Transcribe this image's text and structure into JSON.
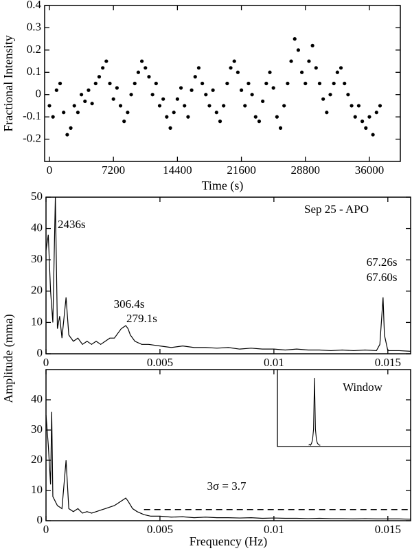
{
  "chart_data": [
    {
      "type": "scatter",
      "xlabel": "Time (s)",
      "ylabel": "Fractional Intensity",
      "color": "#000000",
      "x": [
        0,
        400,
        800,
        1200,
        1600,
        2000,
        2400,
        2800,
        3200,
        3600,
        4000,
        4400,
        4800,
        5200,
        5600,
        6000,
        6400,
        6800,
        7200,
        7600,
        8000,
        8400,
        8800,
        9200,
        9600,
        10000,
        10400,
        10800,
        11200,
        11600,
        12000,
        12400,
        12800,
        13200,
        13600,
        14000,
        14400,
        14800,
        15200,
        15600,
        16000,
        16400,
        16800,
        17200,
        17600,
        18000,
        18400,
        18800,
        19200,
        19600,
        20000,
        20400,
        20800,
        21200,
        21600,
        22000,
        22400,
        22800,
        23200,
        23600,
        24000,
        24400,
        24800,
        25200,
        25600,
        26000,
        26400,
        26800,
        27200,
        27600,
        28000,
        28400,
        28800,
        29200,
        29600,
        30000,
        30400,
        30800,
        31200,
        31600,
        32000,
        32400,
        32800,
        33200,
        33600,
        34000,
        34400,
        34800,
        35200,
        35600,
        36000,
        36400,
        36800,
        37200
      ],
      "values": [
        -0.05,
        -0.1,
        0.02,
        0.05,
        -0.08,
        -0.18,
        -0.15,
        -0.05,
        -0.08,
        0.0,
        -0.03,
        0.02,
        -0.04,
        0.05,
        0.08,
        0.12,
        0.15,
        0.05,
        -0.02,
        0.03,
        -0.05,
        -0.12,
        -0.08,
        0.0,
        0.05,
        0.1,
        0.15,
        0.12,
        0.08,
        0.0,
        0.05,
        -0.05,
        -0.02,
        -0.1,
        -0.15,
        -0.08,
        -0.02,
        0.03,
        -0.05,
        -0.1,
        0.02,
        0.08,
        0.12,
        0.05,
        0.0,
        -0.05,
        0.02,
        -0.08,
        -0.12,
        -0.05,
        0.05,
        0.12,
        0.15,
        0.1,
        0.02,
        -0.05,
        0.05,
        0.0,
        -0.1,
        -0.12,
        -0.03,
        0.05,
        0.1,
        0.03,
        -0.1,
        -0.15,
        -0.05,
        0.05,
        0.15,
        0.25,
        0.2,
        0.1,
        0.05,
        0.15,
        0.22,
        0.12,
        0.05,
        -0.02,
        -0.08,
        0.0,
        0.05,
        0.1,
        0.12,
        0.05,
        0.0,
        -0.05,
        -0.1,
        -0.05,
        -0.12,
        -0.15,
        -0.1,
        -0.18,
        -0.08,
        -0.05
      ],
      "xlim": [
        -540,
        39480
      ],
      "xticks": [
        0,
        7200,
        14400,
        21600,
        28800,
        36000
      ],
      "ylim": [
        -0.3,
        0.4
      ],
      "yticks": [
        -0.2,
        -0.1,
        0,
        0.1,
        0.2,
        0.3,
        0.4
      ]
    },
    {
      "type": "line",
      "ylabel": "Amplitude (mma)",
      "color": "#000000",
      "annotations": [
        "Sep 25 - APO",
        "2436s",
        "306.4s",
        "279.1s",
        "67.26s",
        "67.60s"
      ],
      "x": [
        0,
        0.0001,
        0.0002,
        0.0003,
        0.00041,
        0.0005,
        0.0006,
        0.0007,
        0.00088,
        0.001,
        0.0012,
        0.0014,
        0.0016,
        0.0018,
        0.002,
        0.0022,
        0.0024,
        0.0026,
        0.0028,
        0.003,
        0.0032,
        0.0033,
        0.0035,
        0.0036,
        0.0037,
        0.0039,
        0.0042,
        0.0045,
        0.005,
        0.0055,
        0.006,
        0.0065,
        0.007,
        0.0075,
        0.008,
        0.0085,
        0.009,
        0.0095,
        0.01,
        0.0105,
        0.011,
        0.0115,
        0.012,
        0.0125,
        0.013,
        0.0135,
        0.014,
        0.0145,
        0.01465,
        0.01479,
        0.01485,
        0.015,
        0.0155,
        0.016
      ],
      "values": [
        33,
        38,
        20,
        10,
        50,
        8,
        12,
        5,
        18,
        6,
        4,
        5,
        3,
        4,
        3,
        4,
        3,
        4,
        5,
        5,
        7,
        8,
        9,
        8,
        6,
        4,
        3,
        3,
        2.5,
        2,
        2.5,
        2,
        2,
        1.8,
        2,
        1.5,
        1.8,
        1.5,
        1.5,
        1.2,
        1.5,
        1.2,
        1.2,
        1,
        1.2,
        1,
        1.2,
        1,
        3,
        18,
        6,
        1,
        1,
        0.8
      ],
      "xlim": [
        0,
        0.016
      ],
      "xticks": [
        0,
        0.005,
        0.01,
        0.015
      ],
      "ylim": [
        0,
        50
      ],
      "yticks": [
        0,
        10,
        20,
        30,
        40,
        50
      ]
    },
    {
      "type": "line",
      "xlabel": "Frequency (Hz)",
      "color": "#000000",
      "threshold": 3.7,
      "threshold_label": "3σ = 3.7",
      "x": [
        0,
        0.0001,
        0.0002,
        0.00025,
        0.0003,
        0.0005,
        0.0007,
        0.00088,
        0.001,
        0.0012,
        0.0014,
        0.0016,
        0.0018,
        0.002,
        0.0022,
        0.0024,
        0.0026,
        0.0028,
        0.003,
        0.0032,
        0.0034,
        0.0035,
        0.0036,
        0.0038,
        0.004,
        0.0043,
        0.0046,
        0.005,
        0.0055,
        0.006,
        0.0065,
        0.007,
        0.0075,
        0.008,
        0.0085,
        0.009,
        0.0095,
        0.01,
        0.0105,
        0.011,
        0.0115,
        0.012,
        0.0125,
        0.013,
        0.0135,
        0.014,
        0.0145,
        0.015,
        0.0155,
        0.016
      ],
      "values": [
        35,
        25,
        12,
        36,
        8,
        5,
        4,
        20,
        4,
        3,
        4,
        2.5,
        3,
        2.5,
        3,
        3.5,
        4,
        4.5,
        5,
        6,
        7,
        7.5,
        6.5,
        4,
        3,
        2,
        1.5,
        1.5,
        1.2,
        1.3,
        1,
        1.2,
        1,
        1,
        0.9,
        1,
        0.8,
        0.9,
        0.8,
        0.8,
        0.7,
        0.8,
        0.7,
        0.7,
        0.6,
        0.7,
        0.6,
        0.6,
        0.6,
        0.5
      ],
      "xlim": [
        0,
        0.016
      ],
      "xticks": [
        0,
        0.005,
        0.01,
        0.015
      ],
      "ylim": [
        0,
        50
      ],
      "yticks": [
        0,
        10,
        20,
        30,
        40
      ],
      "inset": {
        "title": "Window",
        "values": [
          0.02,
          0.03,
          0.02,
          0.05,
          0.1,
          0.25,
          1,
          0.25,
          0.1,
          0.05,
          0.03,
          0.02,
          0.02
        ]
      }
    }
  ]
}
